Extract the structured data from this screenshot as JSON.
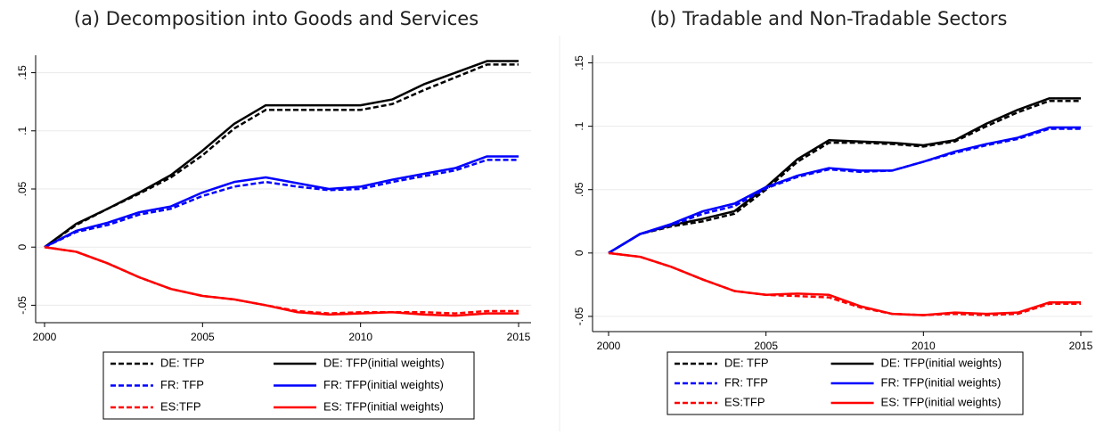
{
  "chart_data": [
    {
      "type": "line",
      "title": "(a) Decomposition into Goods and Services",
      "x": [
        2000,
        2001,
        2002,
        2003,
        2004,
        2005,
        2006,
        2007,
        2008,
        2009,
        2010,
        2011,
        2012,
        2013,
        2014,
        2015
      ],
      "xlim": [
        2000,
        2015
      ],
      "xticks": [
        2000,
        2005,
        2010,
        2015
      ],
      "ylim": [
        -0.065,
        0.165
      ],
      "yticks": [
        {
          "value": -0.05,
          "label": "-.05"
        },
        0,
        {
          "value": 0.05,
          "label": ".05"
        },
        {
          "value": 0.1,
          "label": ".1"
        },
        {
          "value": 0.15,
          "label": ".15"
        }
      ],
      "grid": true,
      "series": [
        {
          "name": "DE: TFP",
          "color": "#000000",
          "style": "dashed",
          "values": [
            0,
            0.019,
            0.033,
            0.046,
            0.06,
            0.079,
            0.102,
            0.118,
            0.118,
            0.118,
            0.118,
            0.123,
            0.135,
            0.146,
            0.157,
            0.157
          ]
        },
        {
          "name": "DE: TFP(initial weights)",
          "color": "#000000",
          "style": "solid",
          "values": [
            0,
            0.02,
            0.033,
            0.047,
            0.062,
            0.083,
            0.106,
            0.122,
            0.122,
            0.122,
            0.122,
            0.127,
            0.14,
            0.15,
            0.16,
            0.16
          ]
        },
        {
          "name": "FR: TFP",
          "color": "#0000ff",
          "style": "dashed",
          "values": [
            0,
            0.013,
            0.019,
            0.028,
            0.033,
            0.044,
            0.052,
            0.056,
            0.052,
            0.049,
            0.05,
            0.056,
            0.061,
            0.066,
            0.075,
            0.075
          ]
        },
        {
          "name": "FR: TFP(initial weights)",
          "color": "#0000ff",
          "style": "solid",
          "values": [
            0,
            0.014,
            0.021,
            0.03,
            0.035,
            0.047,
            0.056,
            0.06,
            0.055,
            0.05,
            0.052,
            0.058,
            0.063,
            0.068,
            0.078,
            0.078
          ]
        },
        {
          "name": "ES:TFP",
          "color": "#ff0000",
          "style": "dashed",
          "values": [
            0,
            -0.004,
            -0.014,
            -0.026,
            -0.036,
            -0.042,
            -0.045,
            -0.05,
            -0.055,
            -0.057,
            -0.056,
            -0.056,
            -0.056,
            -0.057,
            -0.055,
            -0.055
          ]
        },
        {
          "name": "ES: TFP(initial weights)",
          "color": "#ff0000",
          "style": "solid",
          "values": [
            0,
            -0.004,
            -0.014,
            -0.026,
            -0.036,
            -0.042,
            -0.045,
            -0.05,
            -0.056,
            -0.058,
            -0.057,
            -0.056,
            -0.058,
            -0.059,
            -0.057,
            -0.057
          ]
        }
      ]
    },
    {
      "type": "line",
      "title": "(b) Tradable and Non-Tradable Sectors",
      "x": [
        2000,
        2001,
        2002,
        2003,
        2004,
        2005,
        2006,
        2007,
        2008,
        2009,
        2010,
        2011,
        2012,
        2013,
        2014,
        2015
      ],
      "xlim": [
        2000,
        2015
      ],
      "xticks": [
        2000,
        2005,
        2010,
        2015
      ],
      "ylim": [
        -0.062,
        0.156
      ],
      "yticks": [
        {
          "value": -0.05,
          "label": "-.05"
        },
        0,
        {
          "value": 0.05,
          "label": ".05"
        },
        {
          "value": 0.1,
          "label": ".1"
        },
        {
          "value": 0.15,
          "label": ".15"
        }
      ],
      "grid": true,
      "series": [
        {
          "name": "DE: TFP",
          "color": "#000000",
          "style": "dashed",
          "values": [
            0,
            0.015,
            0.021,
            0.025,
            0.031,
            0.05,
            0.072,
            0.087,
            0.087,
            0.086,
            0.084,
            0.088,
            0.1,
            0.111,
            0.12,
            0.12
          ]
        },
        {
          "name": "DE: TFP(initial weights)",
          "color": "#000000",
          "style": "solid",
          "values": [
            0,
            0.015,
            0.022,
            0.027,
            0.033,
            0.052,
            0.074,
            0.089,
            0.088,
            0.087,
            0.085,
            0.089,
            0.102,
            0.113,
            0.122,
            0.122
          ]
        },
        {
          "name": "FR: TFP",
          "color": "#0000ff",
          "style": "dashed",
          "values": [
            0,
            0.015,
            0.022,
            0.031,
            0.037,
            0.051,
            0.06,
            0.066,
            0.064,
            0.065,
            0.072,
            0.079,
            0.085,
            0.09,
            0.098,
            0.098
          ]
        },
        {
          "name": "FR: TFP(initial weights)",
          "color": "#0000ff",
          "style": "solid",
          "values": [
            0,
            0.015,
            0.023,
            0.033,
            0.039,
            0.052,
            0.061,
            0.067,
            0.065,
            0.065,
            0.072,
            0.08,
            0.086,
            0.091,
            0.099,
            0.099
          ]
        },
        {
          "name": "ES:TFP",
          "color": "#ff0000",
          "style": "dashed",
          "values": [
            0,
            -0.003,
            -0.011,
            -0.021,
            -0.03,
            -0.033,
            -0.034,
            -0.035,
            -0.043,
            -0.048,
            -0.049,
            -0.048,
            -0.049,
            -0.048,
            -0.04,
            -0.04
          ]
        },
        {
          "name": "ES: TFP(initial weights)",
          "color": "#ff0000",
          "style": "solid",
          "values": [
            0,
            -0.003,
            -0.011,
            -0.021,
            -0.03,
            -0.033,
            -0.032,
            -0.033,
            -0.042,
            -0.048,
            -0.049,
            -0.047,
            -0.048,
            -0.047,
            -0.039,
            -0.039
          ]
        }
      ]
    }
  ]
}
